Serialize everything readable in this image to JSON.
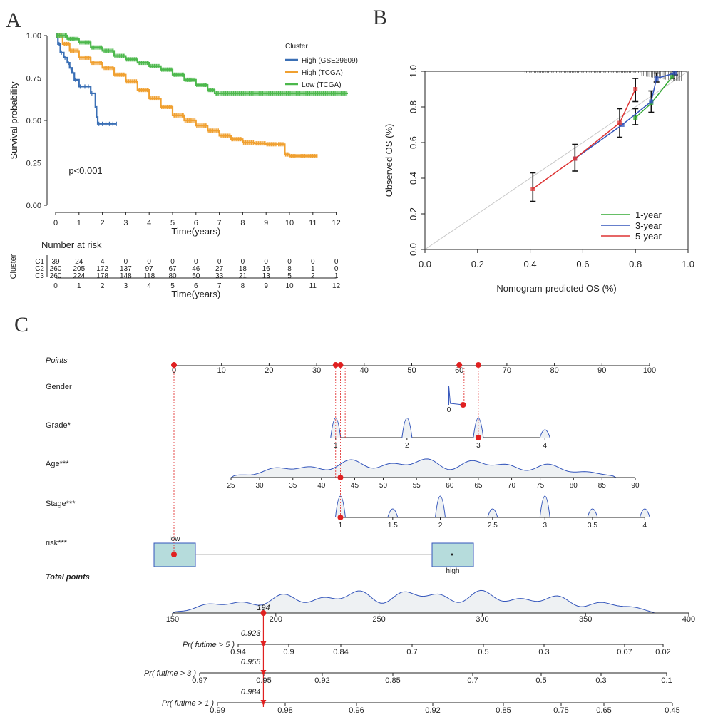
{
  "chart_data": [
    {
      "panel": "A",
      "type": "line",
      "xlabel": "Time(years)",
      "ylabel": "Survival probability",
      "xlim": [
        0,
        12.5
      ],
      "ylim": [
        0,
        1
      ],
      "xticks": [
        "0",
        "1",
        "2",
        "3",
        "4",
        "5",
        "6",
        "7",
        "8",
        "9",
        "10",
        "11",
        "12"
      ],
      "yticks": [
        "0.00",
        "0.25",
        "0.50",
        "0.75",
        "1.00"
      ],
      "legend_title": "Cluster",
      "legend_position": "top-right",
      "annotation": "p<0.001",
      "colors": [
        "#3a6fb5",
        "#f0a030",
        "#4cb84c"
      ],
      "series": [
        {
          "name": "High (GSE29609)",
          "x": [
            0,
            0.1,
            0.2,
            0.35,
            0.5,
            0.6,
            0.7,
            0.8,
            1.0,
            1.2,
            1.5,
            1.7,
            1.75,
            1.8,
            2.6
          ],
          "y": [
            1.0,
            0.95,
            0.9,
            0.87,
            0.84,
            0.81,
            0.78,
            0.74,
            0.7,
            0.7,
            0.66,
            0.58,
            0.52,
            0.48,
            0.48
          ]
        },
        {
          "name": "High (TCGA)",
          "x": [
            0,
            0.3,
            0.6,
            1.0,
            1.5,
            2.0,
            2.5,
            3.0,
            3.5,
            4.0,
            4.5,
            5.0,
            5.5,
            6.0,
            6.5,
            7.0,
            7.5,
            8.0,
            8.5,
            9.0,
            9.5,
            9.8,
            10.0,
            11.2
          ],
          "y": [
            1.0,
            0.95,
            0.91,
            0.87,
            0.84,
            0.81,
            0.77,
            0.73,
            0.68,
            0.63,
            0.58,
            0.53,
            0.5,
            0.47,
            0.44,
            0.41,
            0.39,
            0.37,
            0.365,
            0.36,
            0.36,
            0.3,
            0.29,
            0.29
          ]
        },
        {
          "name": "Low (TCGA)",
          "x": [
            0,
            0.5,
            1.0,
            1.5,
            2.0,
            2.5,
            3.0,
            3.5,
            4.0,
            4.5,
            5.0,
            5.5,
            6.0,
            6.5,
            6.8,
            7.0,
            12.5
          ],
          "y": [
            1.0,
            0.98,
            0.96,
            0.93,
            0.91,
            0.88,
            0.86,
            0.84,
            0.82,
            0.8,
            0.77,
            0.74,
            0.71,
            0.68,
            0.66,
            0.66,
            0.66
          ]
        }
      ]
    },
    {
      "panel": "A-risk-table",
      "type": "table",
      "title": "Number at risk",
      "ylabel": "Cluster",
      "xlabel": "Time(years)",
      "columns": [
        "0",
        "1",
        "2",
        "3",
        "4",
        "5",
        "6",
        "7",
        "8",
        "9",
        "10",
        "11",
        "12"
      ],
      "rows": [
        {
          "name": "C1",
          "values": [
            "39",
            "24",
            "4",
            "0",
            "0",
            "0",
            "0",
            "0",
            "0",
            "0",
            "0",
            "0",
            "0"
          ]
        },
        {
          "name": "C2",
          "values": [
            "260",
            "205",
            "172",
            "137",
            "97",
            "67",
            "46",
            "27",
            "18",
            "16",
            "8",
            "1",
            "0"
          ]
        },
        {
          "name": "C3",
          "values": [
            "260",
            "224",
            "178",
            "148",
            "118",
            "80",
            "50",
            "33",
            "21",
            "13",
            "5",
            "2",
            "1"
          ]
        }
      ]
    },
    {
      "panel": "B",
      "type": "line",
      "xlabel": "Nomogram-predicted OS (%)",
      "ylabel": "Observed OS (%)",
      "xlim": [
        0,
        1
      ],
      "ylim": [
        0,
        1
      ],
      "xticks": [
        "0.0",
        "0.2",
        "0.4",
        "0.6",
        "0.8",
        "1.0"
      ],
      "yticks": [
        "0.0",
        "0.2",
        "0.4",
        "0.6",
        "0.8",
        "1.0"
      ],
      "legend_position": "bottom-right",
      "series": [
        {
          "name": "1-year",
          "color": "#33aa33",
          "x": [
            0.8,
            0.86,
            0.94
          ],
          "y": [
            0.74,
            0.82,
            0.97
          ]
        },
        {
          "name": "3-year",
          "color": "#3355bb",
          "x": [
            0.57,
            0.75,
            0.86,
            0.88,
            0.95
          ],
          "y": [
            0.51,
            0.7,
            0.83,
            0.96,
            0.99
          ]
        },
        {
          "name": "5-year",
          "color": "#dd3333",
          "x": [
            0.41,
            0.57,
            0.74,
            0.8
          ],
          "y": [
            0.34,
            0.51,
            0.71,
            0.9
          ]
        }
      ],
      "points": [
        {
          "x": 0.41,
          "y": 0.34,
          "lo": 0.27,
          "hi": 0.43
        },
        {
          "x": 0.57,
          "y": 0.51,
          "lo": 0.44,
          "hi": 0.59
        },
        {
          "x": 0.74,
          "y": 0.71,
          "lo": 0.63,
          "hi": 0.79
        },
        {
          "x": 0.8,
          "y": 0.9,
          "lo": 0.83,
          "hi": 0.96
        },
        {
          "x": 0.8,
          "y": 0.74,
          "lo": 0.7,
          "hi": 0.79
        },
        {
          "x": 0.86,
          "y": 0.82,
          "lo": 0.77,
          "hi": 0.89
        },
        {
          "x": 0.88,
          "y": 0.96,
          "lo": 0.94,
          "hi": 0.99
        },
        {
          "x": 0.94,
          "y": 0.97,
          "lo": 0.96,
          "hi": 0.99
        },
        {
          "x": 0.95,
          "y": 0.99,
          "lo": 0.98,
          "hi": 1.0
        }
      ]
    },
    {
      "panel": "C",
      "type": "nomogram",
      "points_label": "Points",
      "points_ticks": [
        0,
        10,
        20,
        30,
        40,
        50,
        60,
        70,
        80,
        90,
        100
      ],
      "selected_points": [
        0,
        34,
        35,
        60,
        64
      ],
      "variables": [
        {
          "name": "Gender",
          "ticks": [
            {
              "label": "0",
              "points": 60.8
            }
          ],
          "selected": 61
        },
        {
          "name": "Grade*",
          "ticks": [
            {
              "label": "1",
              "points": 34
            },
            {
              "label": "2",
              "points": 49
            },
            {
              "label": "3",
              "points": 64
            },
            {
              "label": "4",
              "points": 78
            }
          ],
          "selected": 64
        },
        {
          "name": "Age***",
          "ticks": [
            {
              "label": "25",
              "points": 12
            },
            {
              "label": "30",
              "points": 18
            },
            {
              "label": "35",
              "points": 25
            },
            {
              "label": "40",
              "points": 31
            },
            {
              "label": "45",
              "points": 38
            },
            {
              "label": "50",
              "points": 44
            },
            {
              "label": "55",
              "points": 51
            },
            {
              "label": "60",
              "points": 58
            },
            {
              "label": "65",
              "points": 64
            },
            {
              "label": "70",
              "points": 71
            },
            {
              "label": "75",
              "points": 77
            },
            {
              "label": "80",
              "points": 84
            },
            {
              "label": "85",
              "points": 90
            },
            {
              "label": "90",
              "points": 97
            }
          ],
          "selected": 35
        },
        {
          "name": "Stage***",
          "ticks": [
            {
              "label": "1",
              "points": 35
            },
            {
              "label": "1.5",
              "points": 46
            },
            {
              "label": "2",
              "points": 56
            },
            {
              "label": "2.5",
              "points": 67
            },
            {
              "label": "3",
              "points": 78
            },
            {
              "label": "3.5",
              "points": 88
            },
            {
              "label": "4",
              "points": 99
            }
          ],
          "selected": 35
        },
        {
          "name": "risk***",
          "categories": [
            "low",
            "high"
          ]
        }
      ],
      "total_points_label": "Total points",
      "total_points_ticks": [
        150,
        200,
        250,
        300,
        350,
        400
      ],
      "total_selected": 194,
      "total_selected_label": "194",
      "probabilities": [
        {
          "label": "Pr( futime > 5 )",
          "ticks": [
            "0.94",
            "0.9",
            "0.84",
            "0.7",
            "0.5",
            "0.3",
            "0.07",
            "0.02"
          ],
          "value": "0.923"
        },
        {
          "label": "Pr( futime > 3 )",
          "ticks": [
            "0.97",
            "0.95",
            "0.92",
            "0.85",
            "0.7",
            "0.5",
            "0.3",
            "0.1"
          ],
          "value": "0.955"
        },
        {
          "label": "Pr( futime > 1 )",
          "ticks": [
            "0.99",
            "0.98",
            "0.96",
            "0.92",
            "0.85",
            "0.75",
            "0.65",
            "0.45"
          ],
          "value": "0.984"
        }
      ]
    }
  ],
  "labels": {
    "a": "A",
    "b": "B",
    "c": "C"
  }
}
